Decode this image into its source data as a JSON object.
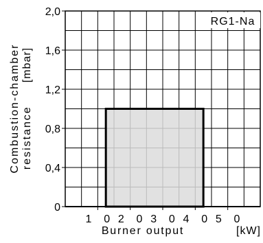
{
  "chart_data": {
    "type": "area",
    "title": "",
    "series_label": "RG1-Na",
    "xlabel": "Burner output",
    "xunit": "[kW]",
    "ylabel_line1": "Combustion-chamber",
    "ylabel_line2": "resistance",
    "yunit": "[mbar]",
    "xlim": [
      0,
      60
    ],
    "ylim": [
      0,
      2.0
    ],
    "x_ticks": [
      {
        "value": 10,
        "label": "1 0"
      },
      {
        "value": 20,
        "label": "2 0"
      },
      {
        "value": 30,
        "label": "3 0"
      },
      {
        "value": 40,
        "label": "4 0"
      },
      {
        "value": 50,
        "label": "5 0"
      }
    ],
    "y_ticks": [
      {
        "value": 0,
        "label": "0"
      },
      {
        "value": 0.4,
        "label": "0,4"
      },
      {
        "value": 0.8,
        "label": "0,8"
      },
      {
        "value": 1.2,
        "label": "1,2"
      },
      {
        "value": 1.6,
        "label": "1,6"
      },
      {
        "value": 2.0,
        "label": "2,0"
      }
    ],
    "grid": true,
    "grid_x_step": 5,
    "grid_y_step": 0.2,
    "region": {
      "x_min": 12.5,
      "x_max": 42.5,
      "y_min": 0,
      "y_max": 1.0,
      "fill": "#dcdcdc"
    }
  }
}
